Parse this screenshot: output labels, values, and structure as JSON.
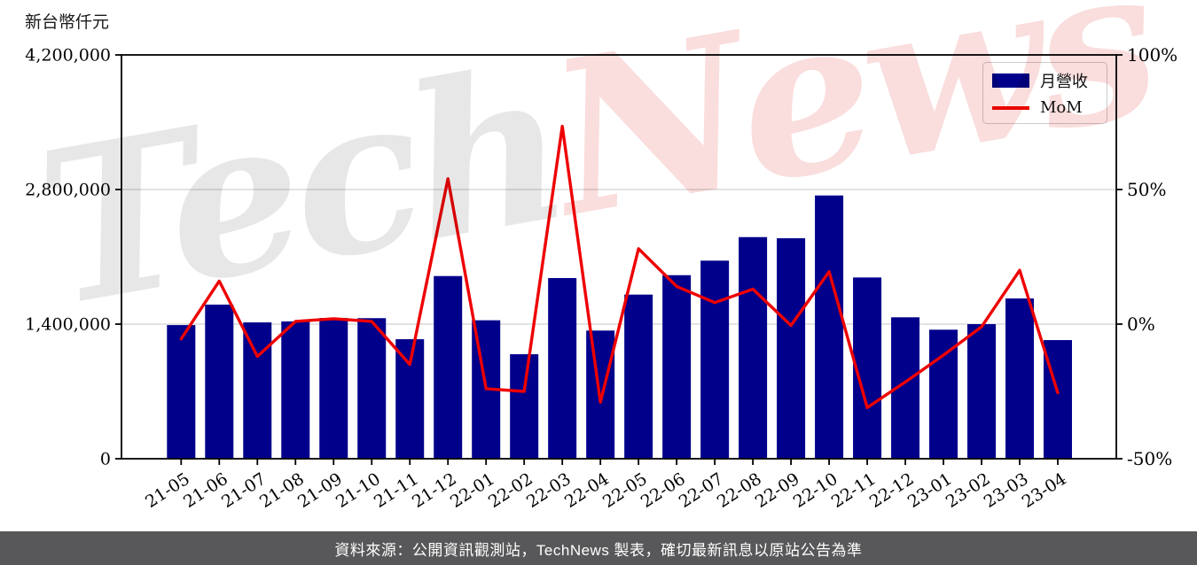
{
  "chart": {
    "y_axis_title": "新台幣仟元"
  },
  "legend": {
    "items": [
      {
        "label": "月營收",
        "swatch": "bar"
      },
      {
        "label": "MoM",
        "swatch": "line"
      }
    ]
  },
  "watermark": {
    "part1": "Tech",
    "part2": "News",
    "part1_color": "#e7e7e7",
    "part2_color": "#fadddd"
  },
  "footer": {
    "caption": "資料來源：公開資訊觀測站，TechNews 製表，確切最新訊息以原站公告為準",
    "bg_color": "#58585a",
    "text_color": "#ffffff"
  },
  "colors": {
    "bar": "#00008B",
    "line": "#ee0000",
    "grid": "#d8d8d8",
    "axis": "#000000",
    "tick_text": "#000000"
  },
  "chart_data": {
    "type": "bar",
    "combo": "bar+line",
    "title": "",
    "categories": [
      "21-05",
      "21-06",
      "21-07",
      "21-08",
      "21-09",
      "21-10",
      "21-11",
      "21-12",
      "22-01",
      "22-02",
      "22-03",
      "22-04",
      "22-05",
      "22-06",
      "22-07",
      "22-08",
      "22-09",
      "22-10",
      "22-11",
      "22-12",
      "23-01",
      "23-02",
      "23-03",
      "23-04"
    ],
    "series": [
      {
        "name": "月營收",
        "type": "bar",
        "yaxis": "left",
        "unit": "新台幣仟元",
        "values": [
          1390000,
          1603000,
          1418000,
          1428000,
          1464000,
          1462000,
          1243000,
          1900000,
          1440000,
          1087000,
          1879000,
          1333000,
          1707000,
          1909000,
          2060000,
          2305000,
          2293000,
          2738000,
          1885000,
          1471000,
          1342000,
          1400000,
          1667000,
          1234000
        ]
      },
      {
        "name": "MoM",
        "type": "line",
        "yaxis": "right",
        "unit": "%",
        "values": [
          -5.5,
          16,
          -12,
          1,
          2,
          1,
          -15,
          54,
          -24,
          -25,
          73.5,
          -29,
          28,
          14,
          8,
          13,
          -0.5,
          19.5,
          -31,
          -21.5,
          -11.5,
          -1,
          20,
          -25.5
        ]
      }
    ],
    "left_axis": {
      "title": "新台幣仟元",
      "min": 0,
      "max": 4200000,
      "ticks": [
        0,
        1400000,
        2800000,
        4200000
      ],
      "tick_labels": [
        "0",
        "1,400,000",
        "2,800,000",
        "4,200,000"
      ]
    },
    "right_axis": {
      "min": -50,
      "max": 100,
      "ticks": [
        -50,
        0,
        50,
        100
      ],
      "tick_labels": [
        "-50%",
        "0%",
        "50%",
        "100%"
      ]
    },
    "gridlines_at_left_values": [
      1400000,
      2800000
    ],
    "grid": "horizontal",
    "legend_position": "top-right"
  }
}
